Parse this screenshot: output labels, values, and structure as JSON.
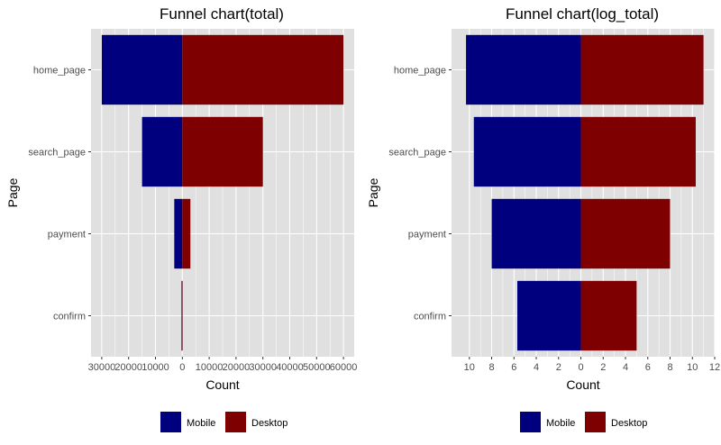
{
  "colors": {
    "mobile": "#00007f",
    "desktop": "#7f0000",
    "panel": "#e0e0e0",
    "grid": "#ffffff"
  },
  "chart_data": [
    {
      "type": "bar",
      "title": "Funnel chart(total)",
      "xlabel": "Count",
      "ylabel": "Page",
      "categories": [
        "home_page",
        "search_page",
        "payment",
        "confirm"
      ],
      "series": [
        {
          "name": "Mobile",
          "values": [
            30000,
            15000,
            3000,
            300
          ]
        },
        {
          "name": "Desktop",
          "values": [
            60000,
            30000,
            3000,
            150
          ]
        }
      ],
      "xlim": [
        -34000,
        64000
      ],
      "xticks": [
        -30000,
        -20000,
        -10000,
        0,
        10000,
        20000,
        30000,
        40000,
        50000,
        60000
      ],
      "xtick_labels": [
        "30000",
        "20000",
        "10000",
        "0",
        "10000",
        "20000",
        "30000",
        "40000",
        "50000",
        "60000"
      ],
      "legend": {
        "position": "bottom",
        "entries": [
          "Mobile",
          "Desktop"
        ]
      },
      "grid": true
    },
    {
      "type": "bar",
      "title": "Funnel chart(log_total)",
      "xlabel": "Count",
      "ylabel": "Page",
      "categories": [
        "home_page",
        "search_page",
        "payment",
        "confirm"
      ],
      "series": [
        {
          "name": "Mobile",
          "values": [
            10.3,
            9.6,
            8.0,
            5.7
          ]
        },
        {
          "name": "Desktop",
          "values": [
            11.0,
            10.3,
            8.0,
            5.0
          ]
        }
      ],
      "xlim": [
        -11.6,
        12.0
      ],
      "xticks": [
        -10,
        -8,
        -6,
        -4,
        -2,
        0,
        2,
        4,
        6,
        8,
        10,
        12
      ],
      "xtick_labels": [
        "10",
        "8",
        "6",
        "4",
        "2",
        "0",
        "2",
        "4",
        "6",
        "8",
        "10",
        "12"
      ],
      "legend": {
        "position": "bottom",
        "entries": [
          "Mobile",
          "Desktop"
        ]
      },
      "grid": true
    }
  ]
}
